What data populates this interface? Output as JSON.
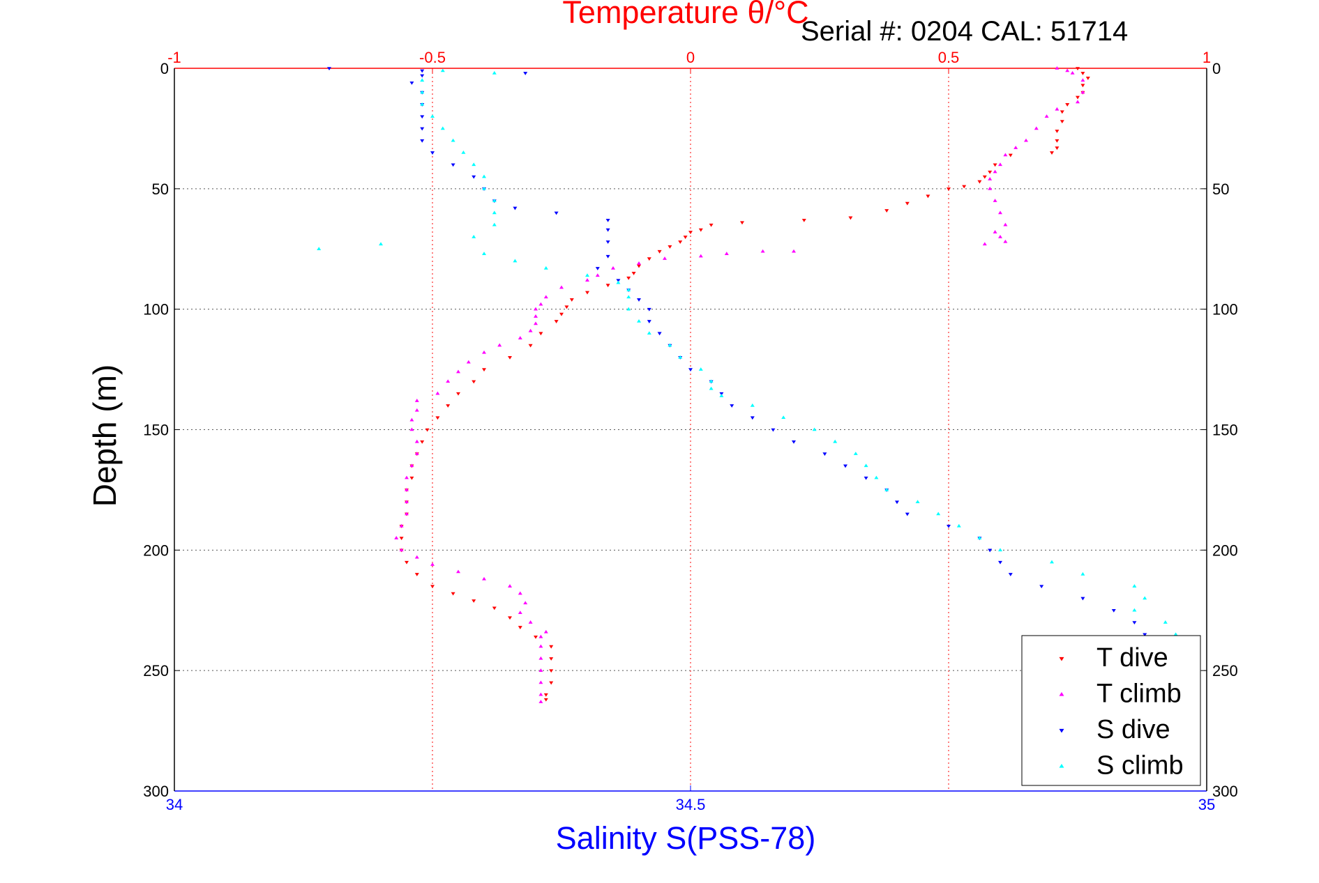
{
  "chart_data": {
    "type": "scatter",
    "title": "Temperature θ/°C",
    "subtitle": "Serial #: 0204  CAL: 51714",
    "ylabel": "Depth (m)",
    "xlabel": "Salinity S(PSS-78)",
    "ylim": [
      0,
      300
    ],
    "y_ticks": [
      "0",
      "50",
      "100",
      "150",
      "200",
      "250",
      "300"
    ],
    "temperature_axis": {
      "lim": [
        -1,
        1
      ],
      "ticks": [
        "-1",
        "-0.5",
        "0",
        "0.5",
        "1"
      ],
      "color": "#ff0000"
    },
    "salinity_axis": {
      "lim": [
        34,
        35
      ],
      "ticks": [
        "34",
        "34.5",
        "35"
      ],
      "color": "#0000ff"
    },
    "legend_position": "bottom-right",
    "grid": true,
    "series": [
      {
        "name": "T dive",
        "axis": "temperature",
        "color": "#ff0000",
        "marker": "triangle-down",
        "points": [
          [
            0.75,
            0
          ],
          [
            0.76,
            2
          ],
          [
            0.77,
            4
          ],
          [
            0.76,
            7
          ],
          [
            0.76,
            10
          ],
          [
            0.75,
            12
          ],
          [
            0.73,
            15
          ],
          [
            0.72,
            18
          ],
          [
            0.72,
            22
          ],
          [
            0.71,
            26
          ],
          [
            0.71,
            30
          ],
          [
            0.71,
            33
          ],
          [
            0.7,
            35
          ],
          [
            0.62,
            36
          ],
          [
            0.59,
            40
          ],
          [
            0.58,
            43
          ],
          [
            0.57,
            45
          ],
          [
            0.56,
            47
          ],
          [
            0.53,
            49
          ],
          [
            0.5,
            50
          ],
          [
            0.46,
            53
          ],
          [
            0.42,
            56
          ],
          [
            0.38,
            59
          ],
          [
            0.31,
            62
          ],
          [
            0.22,
            63
          ],
          [
            0.1,
            64
          ],
          [
            0.04,
            65
          ],
          [
            0.02,
            67
          ],
          [
            0.0,
            68
          ],
          [
            -0.01,
            70
          ],
          [
            -0.02,
            72
          ],
          [
            -0.04,
            74
          ],
          [
            -0.06,
            76
          ],
          [
            -0.08,
            79
          ],
          [
            -0.1,
            82
          ],
          [
            -0.11,
            85
          ],
          [
            -0.12,
            87
          ],
          [
            -0.16,
            90
          ],
          [
            -0.2,
            93
          ],
          [
            -0.23,
            96
          ],
          [
            -0.24,
            99
          ],
          [
            -0.25,
            102
          ],
          [
            -0.26,
            105
          ],
          [
            -0.29,
            110
          ],
          [
            -0.31,
            115
          ],
          [
            -0.35,
            120
          ],
          [
            -0.4,
            125
          ],
          [
            -0.42,
            130
          ],
          [
            -0.45,
            135
          ],
          [
            -0.47,
            140
          ],
          [
            -0.49,
            145
          ],
          [
            -0.51,
            150
          ],
          [
            -0.52,
            155
          ],
          [
            -0.53,
            160
          ],
          [
            -0.54,
            165
          ],
          [
            -0.54,
            170
          ],
          [
            -0.55,
            175
          ],
          [
            -0.55,
            180
          ],
          [
            -0.55,
            185
          ],
          [
            -0.56,
            190
          ],
          [
            -0.56,
            195
          ],
          [
            -0.56,
            200
          ],
          [
            -0.55,
            205
          ],
          [
            -0.53,
            210
          ],
          [
            -0.5,
            215
          ],
          [
            -0.46,
            218
          ],
          [
            -0.42,
            221
          ],
          [
            -0.38,
            224
          ],
          [
            -0.35,
            228
          ],
          [
            -0.33,
            232
          ],
          [
            -0.3,
            236
          ],
          [
            -0.27,
            240
          ],
          [
            -0.27,
            245
          ],
          [
            -0.27,
            250
          ],
          [
            -0.27,
            255
          ],
          [
            -0.28,
            260
          ],
          [
            -0.28,
            262
          ]
        ]
      },
      {
        "name": "T climb",
        "axis": "temperature",
        "color": "#ff00ff",
        "marker": "triangle-up",
        "points": [
          [
            0.71,
            0
          ],
          [
            0.73,
            1
          ],
          [
            0.74,
            2
          ],
          [
            0.76,
            5
          ],
          [
            0.76,
            10
          ],
          [
            0.75,
            14
          ],
          [
            0.71,
            17
          ],
          [
            0.69,
            20
          ],
          [
            0.67,
            25
          ],
          [
            0.65,
            30
          ],
          [
            0.63,
            33
          ],
          [
            0.61,
            36
          ],
          [
            0.6,
            40
          ],
          [
            0.59,
            43
          ],
          [
            0.58,
            46
          ],
          [
            0.58,
            50
          ],
          [
            0.59,
            55
          ],
          [
            0.6,
            60
          ],
          [
            0.61,
            65
          ],
          [
            0.59,
            68
          ],
          [
            0.6,
            70
          ],
          [
            0.61,
            72
          ],
          [
            0.57,
            73
          ],
          [
            0.2,
            76
          ],
          [
            0.14,
            76
          ],
          [
            0.07,
            77
          ],
          [
            0.02,
            78
          ],
          [
            -0.05,
            79
          ],
          [
            -0.1,
            81
          ],
          [
            -0.15,
            83
          ],
          [
            -0.18,
            86
          ],
          [
            -0.2,
            88
          ],
          [
            -0.25,
            91
          ],
          [
            -0.28,
            95
          ],
          [
            -0.29,
            98
          ],
          [
            -0.3,
            100
          ],
          [
            -0.3,
            103
          ],
          [
            -0.3,
            106
          ],
          [
            -0.31,
            109
          ],
          [
            -0.33,
            112
          ],
          [
            -0.37,
            115
          ],
          [
            -0.4,
            118
          ],
          [
            -0.43,
            122
          ],
          [
            -0.45,
            126
          ],
          [
            -0.47,
            130
          ],
          [
            -0.49,
            135
          ],
          [
            -0.53,
            138
          ],
          [
            -0.53,
            142
          ],
          [
            -0.54,
            146
          ],
          [
            -0.54,
            150
          ],
          [
            -0.53,
            155
          ],
          [
            -0.53,
            160
          ],
          [
            -0.54,
            165
          ],
          [
            -0.55,
            170
          ],
          [
            -0.55,
            175
          ],
          [
            -0.55,
            180
          ],
          [
            -0.55,
            185
          ],
          [
            -0.56,
            190
          ],
          [
            -0.57,
            195
          ],
          [
            -0.56,
            200
          ],
          [
            -0.53,
            203
          ],
          [
            -0.5,
            206
          ],
          [
            -0.45,
            209
          ],
          [
            -0.4,
            212
          ],
          [
            -0.35,
            215
          ],
          [
            -0.33,
            218
          ],
          [
            -0.32,
            222
          ],
          [
            -0.33,
            226
          ],
          [
            -0.31,
            230
          ],
          [
            -0.28,
            234
          ],
          [
            -0.29,
            236
          ],
          [
            -0.29,
            240
          ],
          [
            -0.29,
            245
          ],
          [
            -0.29,
            250
          ],
          [
            -0.29,
            255
          ],
          [
            -0.29,
            260
          ],
          [
            -0.29,
            263
          ]
        ]
      },
      {
        "name": "S dive",
        "axis": "salinity",
        "color": "#0000ff",
        "marker": "triangle-down",
        "points": [
          [
            34.15,
            0
          ],
          [
            34.24,
            1
          ],
          [
            34.34,
            2
          ],
          [
            34.24,
            3
          ],
          [
            34.23,
            6
          ],
          [
            34.24,
            10
          ],
          [
            34.24,
            15
          ],
          [
            34.24,
            20
          ],
          [
            34.24,
            25
          ],
          [
            34.24,
            30
          ],
          [
            34.25,
            35
          ],
          [
            34.27,
            40
          ],
          [
            34.29,
            45
          ],
          [
            34.3,
            50
          ],
          [
            34.31,
            55
          ],
          [
            34.33,
            58
          ],
          [
            34.37,
            60
          ],
          [
            34.42,
            63
          ],
          [
            34.42,
            67
          ],
          [
            34.42,
            72
          ],
          [
            34.42,
            78
          ],
          [
            34.41,
            83
          ],
          [
            34.43,
            88
          ],
          [
            34.44,
            92
          ],
          [
            34.45,
            96
          ],
          [
            34.46,
            100
          ],
          [
            34.46,
            105
          ],
          [
            34.47,
            110
          ],
          [
            34.48,
            115
          ],
          [
            34.49,
            120
          ],
          [
            34.5,
            125
          ],
          [
            34.52,
            130
          ],
          [
            34.53,
            135
          ],
          [
            34.54,
            140
          ],
          [
            34.56,
            145
          ],
          [
            34.58,
            150
          ],
          [
            34.6,
            155
          ],
          [
            34.63,
            160
          ],
          [
            34.65,
            165
          ],
          [
            34.67,
            170
          ],
          [
            34.69,
            175
          ],
          [
            34.7,
            180
          ],
          [
            34.71,
            185
          ],
          [
            34.75,
            190
          ],
          [
            34.78,
            195
          ],
          [
            34.79,
            200
          ],
          [
            34.8,
            205
          ],
          [
            34.81,
            210
          ],
          [
            34.84,
            215
          ],
          [
            34.88,
            220
          ],
          [
            34.91,
            225
          ],
          [
            34.93,
            230
          ],
          [
            34.94,
            235
          ],
          [
            34.96,
            240
          ],
          [
            34.96,
            245
          ],
          [
            34.97,
            250
          ],
          [
            34.97,
            255
          ],
          [
            34.98,
            260
          ],
          [
            34.98,
            263
          ]
        ]
      },
      {
        "name": "S climb",
        "axis": "salinity",
        "color": "#00ffff",
        "marker": "triangle-up",
        "points": [
          [
            34.26,
            1
          ],
          [
            34.31,
            2
          ],
          [
            34.24,
            5
          ],
          [
            34.24,
            10
          ],
          [
            34.24,
            15
          ],
          [
            34.25,
            20
          ],
          [
            34.26,
            25
          ],
          [
            34.27,
            30
          ],
          [
            34.28,
            35
          ],
          [
            34.29,
            40
          ],
          [
            34.3,
            45
          ],
          [
            34.3,
            50
          ],
          [
            34.31,
            55
          ],
          [
            34.31,
            60
          ],
          [
            34.31,
            65
          ],
          [
            34.29,
            70
          ],
          [
            34.2,
            73
          ],
          [
            34.14,
            75
          ],
          [
            34.3,
            77
          ],
          [
            34.33,
            80
          ],
          [
            34.36,
            83
          ],
          [
            34.4,
            86
          ],
          [
            34.43,
            89
          ],
          [
            34.44,
            92
          ],
          [
            34.44,
            95
          ],
          [
            34.44,
            100
          ],
          [
            34.45,
            105
          ],
          [
            34.46,
            110
          ],
          [
            34.48,
            115
          ],
          [
            34.49,
            120
          ],
          [
            34.51,
            125
          ],
          [
            34.52,
            130
          ],
          [
            34.52,
            133
          ],
          [
            34.53,
            136
          ],
          [
            34.56,
            140
          ],
          [
            34.59,
            145
          ],
          [
            34.62,
            150
          ],
          [
            34.64,
            155
          ],
          [
            34.66,
            160
          ],
          [
            34.67,
            165
          ],
          [
            34.68,
            170
          ],
          [
            34.69,
            175
          ],
          [
            34.72,
            180
          ],
          [
            34.74,
            185
          ],
          [
            34.76,
            190
          ],
          [
            34.78,
            195
          ],
          [
            34.8,
            200
          ],
          [
            34.85,
            205
          ],
          [
            34.88,
            210
          ],
          [
            34.93,
            215
          ],
          [
            34.94,
            220
          ],
          [
            34.93,
            225
          ],
          [
            34.96,
            230
          ],
          [
            34.97,
            235
          ],
          [
            34.97,
            240
          ],
          [
            34.98,
            245
          ],
          [
            34.99,
            250
          ],
          [
            34.99,
            255
          ],
          [
            34.99,
            260
          ],
          [
            34.99,
            263
          ]
        ]
      }
    ]
  }
}
